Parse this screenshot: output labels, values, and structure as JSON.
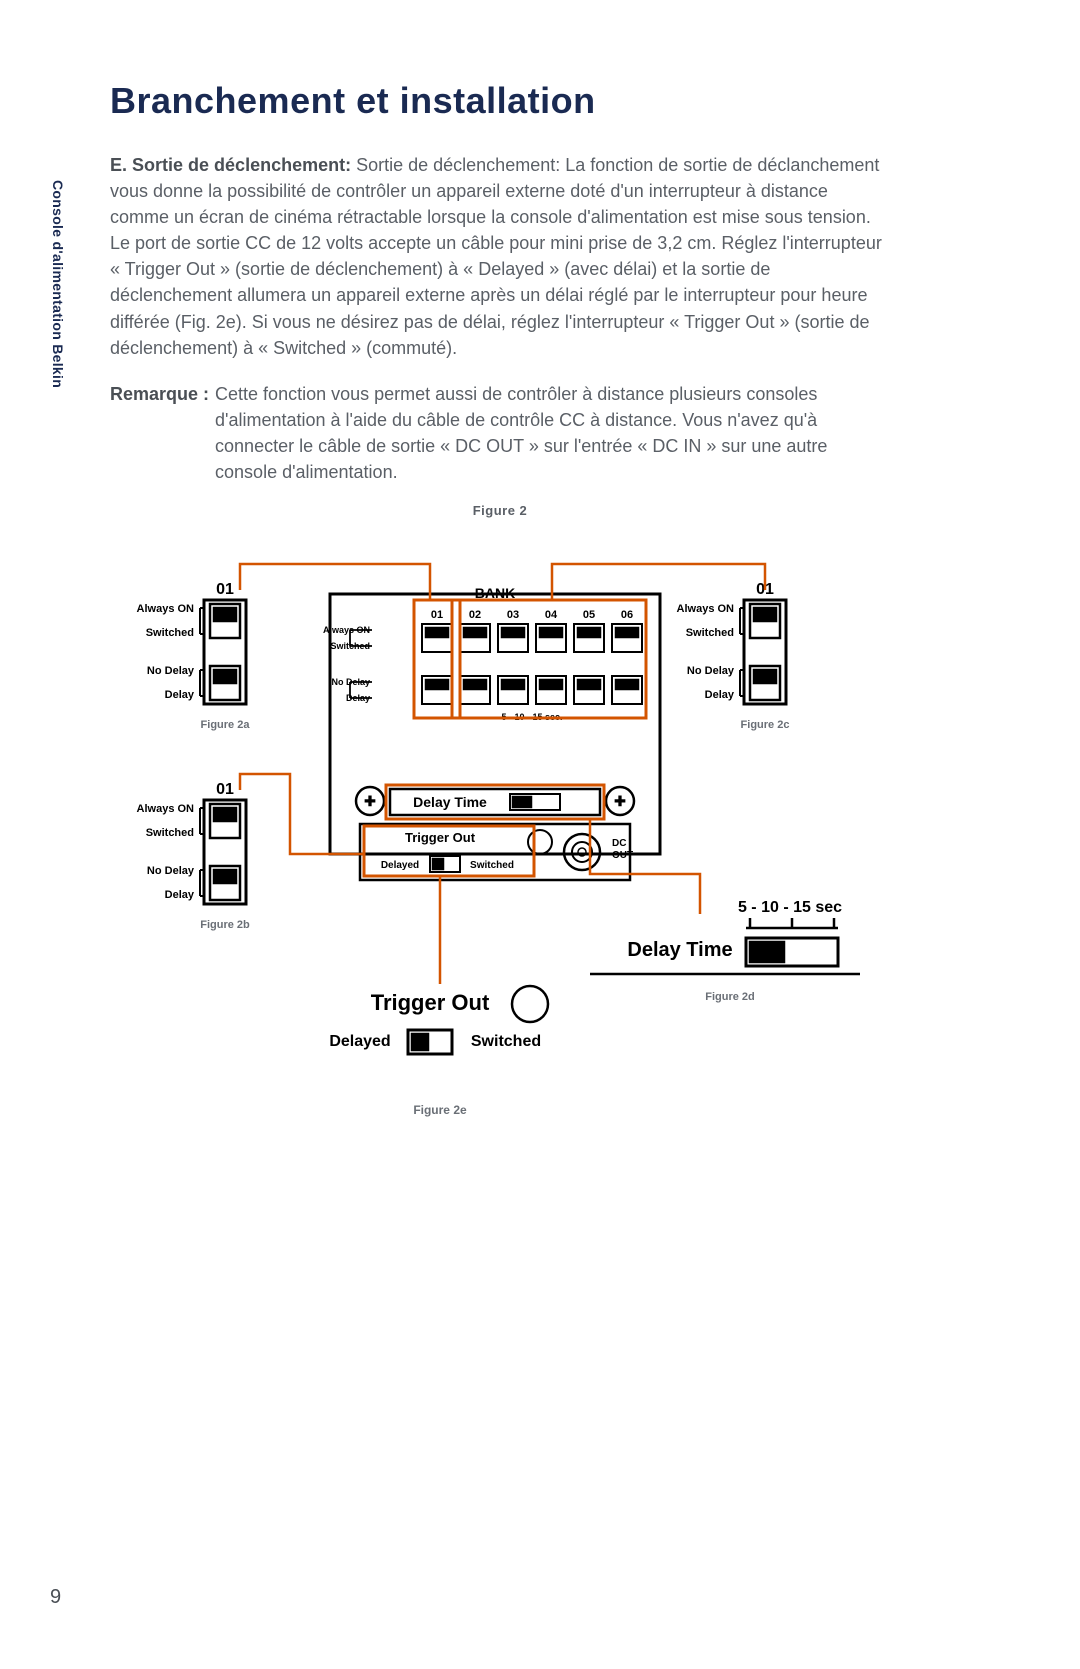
{
  "side_label": "Console d'alimentation Belkin",
  "heading": "Branchement et installation",
  "section_letter": "E.",
  "section_title": "Sortie de déclenchement:",
  "section_body": " Sortie de déclenchement: La fonction de sortie de déclanchement vous donne la possibilité de contrôler un appareil externe doté d'un interrupteur à distance comme un écran de cinéma rétractable lorsque la console d'alimentation est mise sous tension. Le port de sortie CC de 12 volts accepte un câble pour mini prise de 3,2 cm. Réglez l'interrupteur « Trigger Out » (sortie de déclenchement) à « Delayed » (avec délai) et la sortie de déclenchement allumera un appareil externe après un délai réglé par le interrupteur pour heure différée (Fig. 2e). Si vous ne désirez pas de délai, réglez l'interrupteur « Trigger Out » (sortie de déclenchement) à « Switched » (commuté).",
  "remarque_label": "Remarque :",
  "remarque_body": "Cette fonction vous permet aussi de contrôler à distance plusieurs consoles d'alimentation à l'aide du câble de contrôle CC à distance. Vous n'avez qu'à connecter le câble de sortie « DC OUT » sur l'entrée « DC IN » sur une autre console d'alimentation.",
  "figure_main_label": "Figure 2",
  "page_number": "9",
  "diagram": {
    "accent_color": "#d35400",
    "line_color": "#000000",
    "text_color": "#000000",
    "caption_color": "#6a6f76",
    "bg": "#ffffff",
    "bank_label": "BANK",
    "bank_numbers": [
      "01",
      "02",
      "03",
      "04",
      "05",
      "06"
    ],
    "labels_always_on": "Always ON",
    "labels_switched": "Switched",
    "labels_no_delay": "No Delay",
    "labels_delay": "Delay",
    "delay_time_label": "Delay Time",
    "delay_time_scale": "5 - 10 - 15 sec.",
    "delay_time_scale_big": "5 - 10 - 15 sec",
    "trigger_out_label": "Trigger Out",
    "trigger_delayed": "Delayed",
    "trigger_switched": "Switched",
    "dc_out_label": "DC\nOUT",
    "fig2a": "Figure 2a",
    "fig2b": "Figure 2b",
    "fig2c": "Figure 2c",
    "fig2d": "Figure 2d",
    "fig2e": "Figure 2e",
    "callouts": {
      "a": {
        "num": "01",
        "caption": "Figure 2a"
      },
      "b": {
        "num": "01",
        "caption": "Figure 2b"
      },
      "c": {
        "num": "01",
        "caption": "Figure 2c"
      }
    }
  }
}
